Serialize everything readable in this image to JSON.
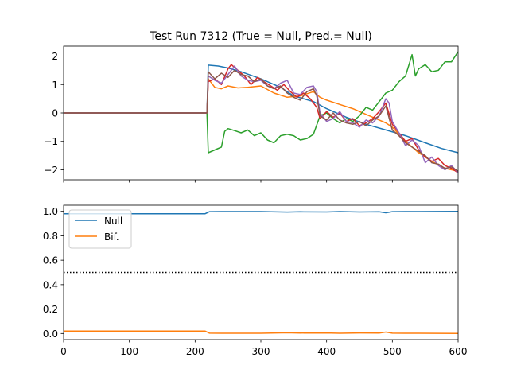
{
  "chart_data": [
    {
      "type": "line",
      "title": "Test Run 7312 (True = Null, Pred.= Null)",
      "xlim": [
        0,
        600
      ],
      "ylim": [
        -2.35,
        2.35
      ],
      "yticks": [
        2,
        1,
        0,
        -1,
        -2
      ],
      "ytick_labels": [
        "2",
        "1",
        "0",
        "−1",
        "−2"
      ],
      "xticks": [
        0,
        100,
        200,
        300,
        400,
        500,
        600
      ],
      "show_xtick_labels": false,
      "series": [
        {
          "color": "#1f77b4",
          "x": [
            0,
            218,
            220,
            235,
            250,
            270,
            300,
            330,
            350,
            380,
            400,
            430,
            460,
            490,
            520,
            550,
            575,
            600
          ],
          "y": [
            0,
            0,
            1.68,
            1.65,
            1.58,
            1.45,
            1.2,
            0.9,
            0.6,
            0.4,
            0.15,
            -0.15,
            -0.4,
            -0.6,
            -0.8,
            -1.05,
            -1.25,
            -1.4
          ]
        },
        {
          "color": "#ff7f0e",
          "x": [
            0,
            218,
            220,
            230,
            240,
            250,
            265,
            280,
            300,
            320,
            340,
            360,
            380,
            390,
            400,
            420,
            440,
            460,
            480,
            490,
            500,
            520,
            540,
            560,
            580,
            600
          ],
          "y": [
            0,
            0,
            1.2,
            0.9,
            0.85,
            0.95,
            0.88,
            0.9,
            0.95,
            0.7,
            0.55,
            0.6,
            0.75,
            0.55,
            0.45,
            0.3,
            0.15,
            -0.05,
            -0.25,
            -0.35,
            -0.5,
            -1.0,
            -1.4,
            -1.7,
            -1.95,
            -2.05
          ]
        },
        {
          "color": "#2ca02c",
          "x": [
            0,
            218,
            220,
            230,
            240,
            245,
            250,
            260,
            270,
            280,
            290,
            300,
            310,
            320,
            330,
            340,
            350,
            360,
            370,
            380,
            390,
            400,
            410,
            420,
            430,
            440,
            450,
            460,
            470,
            480,
            490,
            500,
            510,
            520,
            530,
            535,
            540,
            550,
            560,
            570,
            580,
            590,
            600
          ],
          "y": [
            0,
            0,
            -1.4,
            -1.3,
            -1.2,
            -0.65,
            -0.55,
            -0.62,
            -0.7,
            -0.6,
            -0.8,
            -0.7,
            -0.95,
            -1.05,
            -0.8,
            -0.75,
            -0.8,
            -0.95,
            -0.9,
            -0.75,
            -0.1,
            0.0,
            -0.2,
            -0.35,
            -0.2,
            -0.3,
            -0.1,
            0.2,
            0.1,
            0.4,
            0.7,
            0.8,
            1.1,
            1.3,
            2.05,
            1.3,
            1.55,
            1.7,
            1.45,
            1.5,
            1.8,
            1.8,
            2.15
          ]
        },
        {
          "color": "#d62728",
          "x": [
            0,
            218,
            220,
            230,
            240,
            250,
            255,
            265,
            275,
            285,
            295,
            305,
            315,
            325,
            335,
            345,
            355,
            365,
            375,
            385,
            390,
            400,
            410,
            420,
            430,
            440,
            450,
            460,
            470,
            480,
            490,
            500,
            510,
            520,
            530,
            540,
            550,
            560,
            570,
            580,
            590,
            600
          ],
          "y": [
            0,
            0,
            1.1,
            1.2,
            1.0,
            1.55,
            1.7,
            1.5,
            1.3,
            1.0,
            1.25,
            1.1,
            0.95,
            0.8,
            1.0,
            0.75,
            0.55,
            0.7,
            0.5,
            0.2,
            -0.2,
            0.05,
            -0.15,
            0.0,
            -0.3,
            -0.2,
            -0.45,
            -0.35,
            -0.2,
            0.05,
            0.35,
            -0.4,
            -0.7,
            -1.0,
            -0.9,
            -1.3,
            -1.55,
            -1.7,
            -1.6,
            -1.85,
            -1.95,
            -2.1
          ]
        },
        {
          "color": "#9467bd",
          "x": [
            0,
            218,
            220,
            230,
            240,
            250,
            260,
            270,
            280,
            290,
            300,
            310,
            320,
            330,
            340,
            350,
            360,
            370,
            380,
            385,
            390,
            400,
            410,
            420,
            430,
            440,
            450,
            460,
            470,
            480,
            490,
            495,
            500,
            510,
            520,
            530,
            540,
            550,
            560,
            570,
            580,
            590,
            600
          ],
          "y": [
            0,
            0,
            1.3,
            1.15,
            1.05,
            1.35,
            1.65,
            1.3,
            1.15,
            1.1,
            1.15,
            0.95,
            0.85,
            1.05,
            1.15,
            0.7,
            0.65,
            0.9,
            0.95,
            0.75,
            0.0,
            -0.3,
            -0.2,
            0.05,
            -0.3,
            -0.35,
            -0.5,
            -0.25,
            -0.35,
            -0.1,
            0.5,
            0.35,
            -0.3,
            -0.7,
            -1.15,
            -0.95,
            -1.15,
            -1.75,
            -1.55,
            -1.85,
            -2.0,
            -1.85,
            -2.1
          ]
        },
        {
          "color": "#8c564b",
          "x": [
            0,
            218,
            220,
            230,
            240,
            250,
            260,
            270,
            280,
            290,
            300,
            310,
            320,
            330,
            340,
            350,
            360,
            370,
            380,
            385,
            390,
            400,
            410,
            420,
            430,
            440,
            450,
            460,
            470,
            480,
            490,
            500,
            510,
            520,
            530,
            540,
            550,
            560,
            570,
            580,
            590,
            600
          ],
          "y": [
            0,
            0,
            1.45,
            1.2,
            1.4,
            1.25,
            1.5,
            1.35,
            1.3,
            1.1,
            1.2,
            0.95,
            0.85,
            0.95,
            0.7,
            0.55,
            0.45,
            0.75,
            0.85,
            0.6,
            -0.1,
            -0.25,
            0.0,
            -0.25,
            -0.35,
            -0.4,
            -0.3,
            -0.45,
            -0.25,
            -0.1,
            0.25,
            -0.6,
            -0.8,
            -1.05,
            -1.2,
            -1.35,
            -1.5,
            -1.75,
            -1.8,
            -1.95,
            -1.9,
            -2.05
          ]
        }
      ]
    },
    {
      "type": "line",
      "xlim": [
        0,
        600
      ],
      "ylim": [
        -0.05,
        1.05
      ],
      "yticks": [
        0.0,
        0.2,
        0.4,
        0.6,
        0.8,
        1.0
      ],
      "ytick_labels": [
        "0.0",
        "0.2",
        "0.4",
        "0.6",
        "0.8",
        "1.0"
      ],
      "xticks": [
        0,
        100,
        200,
        300,
        400,
        500,
        600
      ],
      "xtick_labels": [
        "0",
        "100",
        "200",
        "300",
        "400",
        "500",
        "600"
      ],
      "legend": {
        "position": "upper-left",
        "entries": [
          "Null",
          "Bif."
        ]
      },
      "threshold": {
        "y": 0.5,
        "style": "dotted",
        "color": "#000000"
      },
      "series": [
        {
          "name": "Null",
          "color": "#1f77b4",
          "x": [
            0,
            215,
            222,
            240,
            300,
            340,
            360,
            400,
            420,
            450,
            480,
            490,
            500,
            540,
            600
          ],
          "y": [
            0.98,
            0.98,
            0.997,
            0.998,
            0.998,
            0.994,
            0.996,
            0.995,
            0.998,
            0.995,
            0.996,
            0.988,
            0.997,
            0.998,
            0.999
          ]
        },
        {
          "name": "Bif.",
          "color": "#ff7f0e",
          "x": [
            0,
            215,
            222,
            240,
            300,
            340,
            360,
            400,
            420,
            450,
            480,
            490,
            500,
            540,
            600
          ],
          "y": [
            0.02,
            0.02,
            0.003,
            0.002,
            0.002,
            0.006,
            0.004,
            0.005,
            0.002,
            0.005,
            0.004,
            0.012,
            0.003,
            0.002,
            0.001
          ]
        }
      ]
    }
  ]
}
